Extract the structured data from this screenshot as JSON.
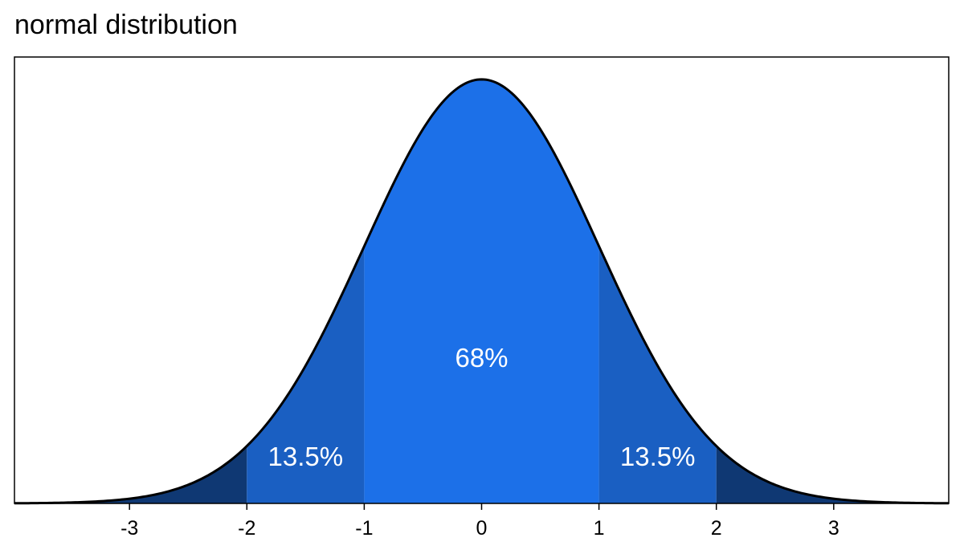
{
  "chart_data": {
    "type": "area",
    "title": "normal distribution",
    "xlabel": "",
    "ylabel": "",
    "xlim": [
      -3.98,
      3.98
    ],
    "ylim": [
      0,
      0.42
    ],
    "x_ticks": [
      -3,
      -2,
      -1,
      0,
      1,
      2,
      3
    ],
    "x_tick_labels": [
      "-3",
      "-2",
      "-1",
      "0",
      "1",
      "2",
      "3"
    ],
    "y_ticks": [],
    "grid": false,
    "curve": {
      "type": "normal-density",
      "mean": 0,
      "sd": 1,
      "color": "#000000"
    },
    "regions": [
      {
        "name": "left-tail",
        "from": -4,
        "to": -2,
        "color": "#0f3873"
      },
      {
        "name": "left-1sd-2sd",
        "from": -2,
        "to": -1,
        "color": "#1a5fc2"
      },
      {
        "name": "center",
        "from": -1,
        "to": 1,
        "color": "#1c70e8"
      },
      {
        "name": "right-1sd-2sd",
        "from": 1,
        "to": 2,
        "color": "#1a5fc2"
      },
      {
        "name": "right-tail",
        "from": 2,
        "to": 4,
        "color": "#0f3873"
      }
    ],
    "annotations": [
      {
        "text": "68%",
        "x": 0,
        "y": 0.135
      },
      {
        "text": "13.5%",
        "x": -1.5,
        "y": 0.042
      },
      {
        "text": "13.5%",
        "x": 1.5,
        "y": 0.042
      }
    ]
  }
}
